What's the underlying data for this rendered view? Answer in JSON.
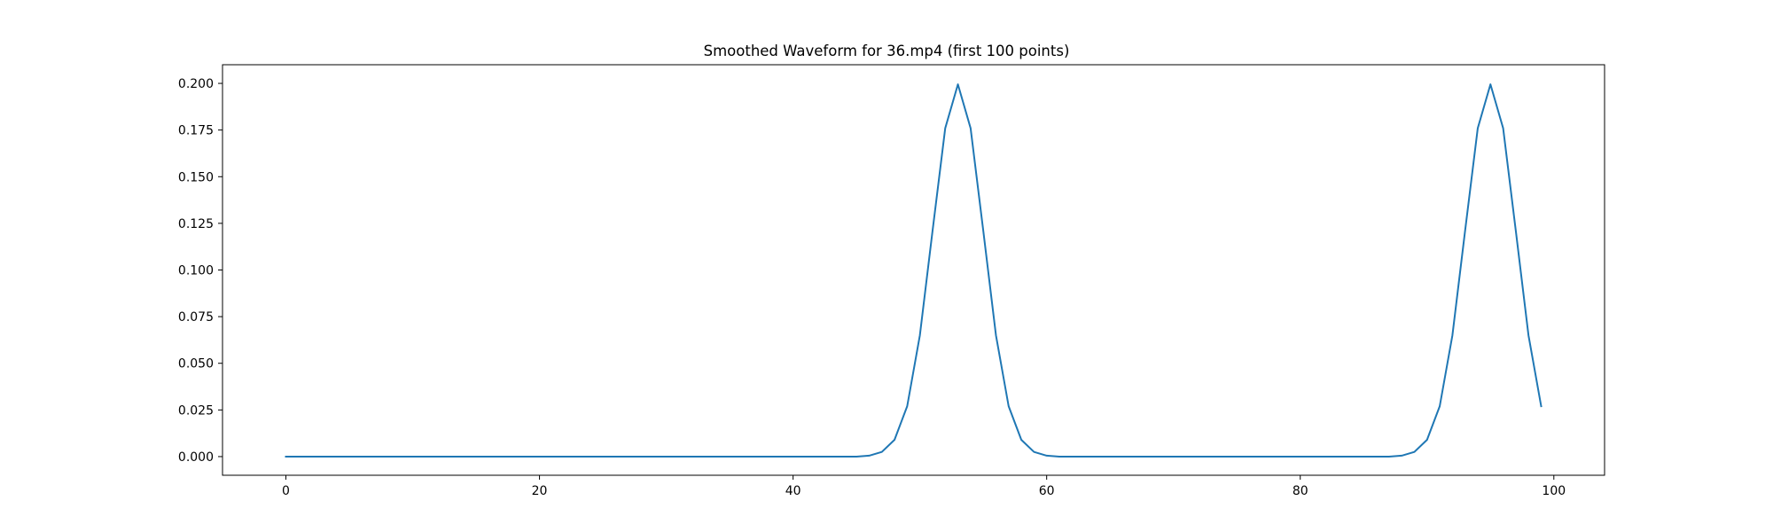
{
  "chart_data": {
    "type": "line",
    "title": "Smoothed Waveform for 36.mp4 (first 100 points)",
    "xlabel": "",
    "ylabel": "",
    "xlim": [
      -5,
      104
    ],
    "ylim": [
      -0.01,
      0.21
    ],
    "x_ticks": [
      0,
      20,
      40,
      60,
      80,
      100
    ],
    "x_tick_labels": [
      "0",
      "20",
      "40",
      "60",
      "80",
      "100"
    ],
    "y_ticks": [
      0,
      0.025,
      0.05,
      0.075,
      0.1,
      0.125,
      0.15,
      0.175,
      0.2
    ],
    "y_tick_labels": [
      "0.000",
      "0.025",
      "0.050",
      "0.075",
      "0.100",
      "0.125",
      "0.150",
      "0.175",
      "0.200"
    ],
    "grid": false,
    "series": [
      {
        "color": "#1f77b4",
        "x": [
          0,
          1,
          2,
          3,
          4,
          5,
          6,
          7,
          8,
          9,
          10,
          11,
          12,
          13,
          14,
          15,
          16,
          17,
          18,
          19,
          20,
          21,
          22,
          23,
          24,
          25,
          26,
          27,
          28,
          29,
          30,
          31,
          32,
          33,
          34,
          35,
          36,
          37,
          38,
          39,
          40,
          41,
          42,
          43,
          44,
          45,
          46,
          47,
          48,
          49,
          50,
          51,
          52,
          53,
          54,
          55,
          56,
          57,
          58,
          59,
          60,
          61,
          62,
          63,
          64,
          65,
          66,
          67,
          68,
          69,
          70,
          71,
          72,
          73,
          74,
          75,
          76,
          77,
          78,
          79,
          80,
          81,
          82,
          83,
          84,
          85,
          86,
          87,
          88,
          89,
          90,
          91,
          92,
          93,
          94,
          95,
          96,
          97,
          98,
          99
        ],
        "y": [
          0,
          0,
          0,
          0,
          0,
          0,
          0,
          0,
          0,
          0,
          0,
          0,
          0,
          0,
          0,
          0,
          0,
          0,
          0,
          0,
          0,
          0,
          0,
          0,
          0,
          0,
          0,
          0,
          0,
          0,
          0,
          0,
          0,
          0,
          0,
          0,
          0,
          0,
          0,
          0,
          0,
          0,
          0,
          0,
          0,
          0,
          0.0005,
          0.0025,
          0.009,
          0.027,
          0.065,
          0.121,
          0.176,
          0.1995,
          0.176,
          0.121,
          0.065,
          0.027,
          0.009,
          0.0025,
          0.0005,
          0,
          0,
          0,
          0,
          0,
          0,
          0,
          0,
          0,
          0,
          0,
          0,
          0,
          0,
          0,
          0,
          0,
          0,
          0,
          0,
          0,
          0,
          0,
          0,
          0,
          0,
          0,
          0.0005,
          0.0025,
          0.009,
          0.027,
          0.065,
          0.121,
          0.176,
          0.1995,
          0.176,
          0.121,
          0.065,
          0.027
        ]
      }
    ]
  }
}
